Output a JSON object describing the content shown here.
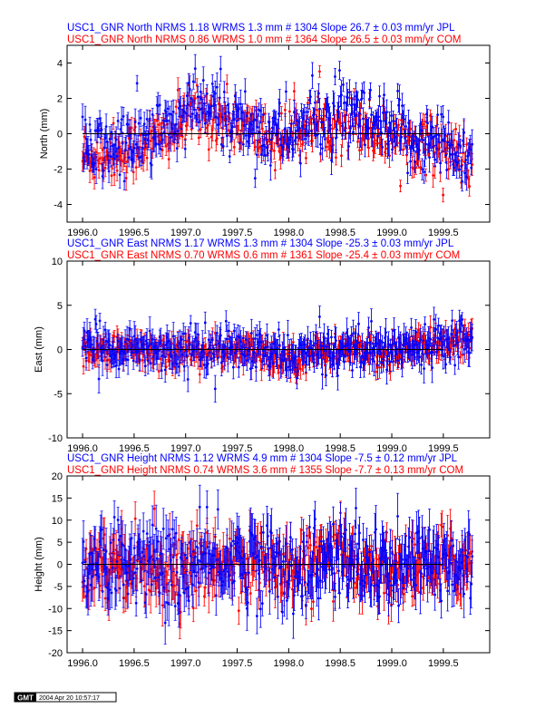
{
  "colors": {
    "jpl": "#0000ff",
    "com": "#ff0000",
    "zero_line": "#000000"
  },
  "chart_data": [
    {
      "type": "scatter",
      "title_jpl": "USC1_GNR North NRMS 1.18 WRMS  1.3 mm # 1304 Slope   26.7 ±  0.03 mm/yr JPL",
      "title_com": "USC1_GNR North NRMS 0.86 WRMS  1.0 mm # 1364 Slope   26.5 ±  0.03 mm/yr COM",
      "ylabel": "North (mm)",
      "xlim": [
        1995.85,
        1999.95
      ],
      "ylim": [
        -5,
        5
      ],
      "xticks": [
        "1996.0",
        "1996.5",
        "1997.0",
        "1997.5",
        "1998.0",
        "1998.5",
        "1999.0",
        "1999.5"
      ],
      "yticks": [
        "-4",
        "-2",
        "0",
        "2",
        "4"
      ],
      "series": [
        {
          "name": "JPL",
          "start": 1996.0,
          "end": 1999.78,
          "offsets": [
            [
              1996.0,
              -1.0
            ],
            [
              1996.45,
              -0.6
            ],
            [
              1996.85,
              0.3
            ],
            [
              1997.1,
              1.6
            ],
            [
              1997.35,
              1.2
            ],
            [
              1997.6,
              0.5
            ],
            [
              1997.9,
              -0.2
            ],
            [
              1998.2,
              0.6
            ],
            [
              1998.6,
              1.0
            ],
            [
              1998.9,
              0.2
            ],
            [
              1999.2,
              -0.2
            ],
            [
              1999.5,
              -0.6
            ],
            [
              1999.78,
              -1.4
            ]
          ],
          "spread": 1.0,
          "err": 0.6
        },
        {
          "name": "COM",
          "start": 1996.0,
          "end": 1999.78,
          "offsets": [
            [
              1996.0,
              -1.3
            ],
            [
              1996.45,
              -0.9
            ],
            [
              1996.85,
              0.0
            ],
            [
              1997.1,
              1.2
            ],
            [
              1997.35,
              0.9
            ],
            [
              1997.6,
              0.3
            ],
            [
              1997.9,
              -0.4
            ],
            [
              1998.2,
              0.4
            ],
            [
              1998.6,
              0.7
            ],
            [
              1998.9,
              0.0
            ],
            [
              1999.2,
              -0.4
            ],
            [
              1999.5,
              -0.8
            ],
            [
              1999.78,
              -1.6
            ]
          ],
          "spread": 0.8,
          "err": 0.5
        }
      ]
    },
    {
      "type": "scatter",
      "title_jpl": "USC1_GNR East NRMS 1.17 WRMS  1.3 mm # 1304 Slope  -25.3 ±  0.03 mm/yr JPL",
      "title_com": "USC1_GNR East NRMS 0.70 WRMS  0.6 mm # 1361 Slope  -25.4 ±  0.03 mm/yr COM",
      "ylabel": "East (mm)",
      "xlim": [
        1995.85,
        1999.95
      ],
      "ylim": [
        -10,
        10
      ],
      "xticks": [
        "1996.0",
        "1996.5",
        "1997.0",
        "1997.5",
        "1998.0",
        "1998.5",
        "1999.0",
        "1999.5"
      ],
      "yticks": [
        "-10",
        "-5",
        "0",
        "5",
        "10"
      ],
      "series": [
        {
          "name": "JPL",
          "start": 1996.0,
          "end": 1999.78,
          "offsets": [
            [
              1996.0,
              0.3
            ],
            [
              1996.5,
              0.2
            ],
            [
              1997.0,
              0.0
            ],
            [
              1997.5,
              0.1
            ],
            [
              1998.0,
              -0.8
            ],
            [
              1998.3,
              -0.2
            ],
            [
              1998.6,
              0.4
            ],
            [
              1998.9,
              -0.3
            ],
            [
              1999.2,
              0.5
            ],
            [
              1999.5,
              1.3
            ],
            [
              1999.78,
              1.5
            ]
          ],
          "spread": 1.2,
          "err": 1.2
        },
        {
          "name": "COM",
          "start": 1996.0,
          "end": 1999.78,
          "offsets": [
            [
              1996.0,
              0.0
            ],
            [
              1996.5,
              -0.2
            ],
            [
              1997.0,
              -0.3
            ],
            [
              1997.5,
              -0.2
            ],
            [
              1998.0,
              -1.0
            ],
            [
              1998.3,
              -0.4
            ],
            [
              1998.6,
              0.1
            ],
            [
              1998.9,
              -0.5
            ],
            [
              1999.2,
              0.2
            ],
            [
              1999.5,
              0.8
            ],
            [
              1999.78,
              0.9
            ]
          ],
          "spread": 0.9,
          "err": 1.0
        }
      ]
    },
    {
      "type": "scatter",
      "title_jpl": "USC1_GNR Height NRMS 1.12 WRMS  4.9 mm # 1304 Slope   -7.5 ±  0.12 mm/yr JPL",
      "title_com": "USC1_GNR Height NRMS 0.74 WRMS  3.6 mm # 1355 Slope   -7.7 ±  0.13 mm/yr COM",
      "ylabel": "Height (mm)",
      "xlim": [
        1995.85,
        1999.95
      ],
      "ylim": [
        -20,
        20
      ],
      "xticks": [
        "1996.0",
        "1996.5",
        "1997.0",
        "1997.5",
        "1998.0",
        "1998.5",
        "1999.0",
        "1999.5"
      ],
      "yticks": [
        "-20",
        "-15",
        "-10",
        "-5",
        "0",
        "5",
        "10",
        "15",
        "20"
      ],
      "series": [
        {
          "name": "JPL",
          "start": 1996.0,
          "end": 1999.78,
          "offsets": [
            [
              1996.0,
              0.5
            ],
            [
              1996.5,
              1.0
            ],
            [
              1997.0,
              -1.5
            ],
            [
              1997.5,
              1.5
            ],
            [
              1998.0,
              -1.0
            ],
            [
              1998.5,
              1.2
            ],
            [
              1999.0,
              -1.5
            ],
            [
              1999.5,
              1.0
            ],
            [
              1999.78,
              0.5
            ]
          ],
          "spread": 4.8,
          "err": 4.0
        },
        {
          "name": "COM",
          "start": 1996.0,
          "end": 1999.78,
          "offsets": [
            [
              1996.0,
              0.2
            ],
            [
              1996.5,
              0.6
            ],
            [
              1997.0,
              -1.8
            ],
            [
              1997.5,
              1.0
            ],
            [
              1998.0,
              -1.3
            ],
            [
              1998.5,
              0.8
            ],
            [
              1999.0,
              -1.8
            ],
            [
              1999.5,
              0.6
            ],
            [
              1999.78,
              0.2
            ]
          ],
          "spread": 3.8,
          "err": 3.5
        }
      ]
    }
  ],
  "footer": {
    "logo": "GMT",
    "timestamp": "2004 Apr 20 10:57:17"
  }
}
